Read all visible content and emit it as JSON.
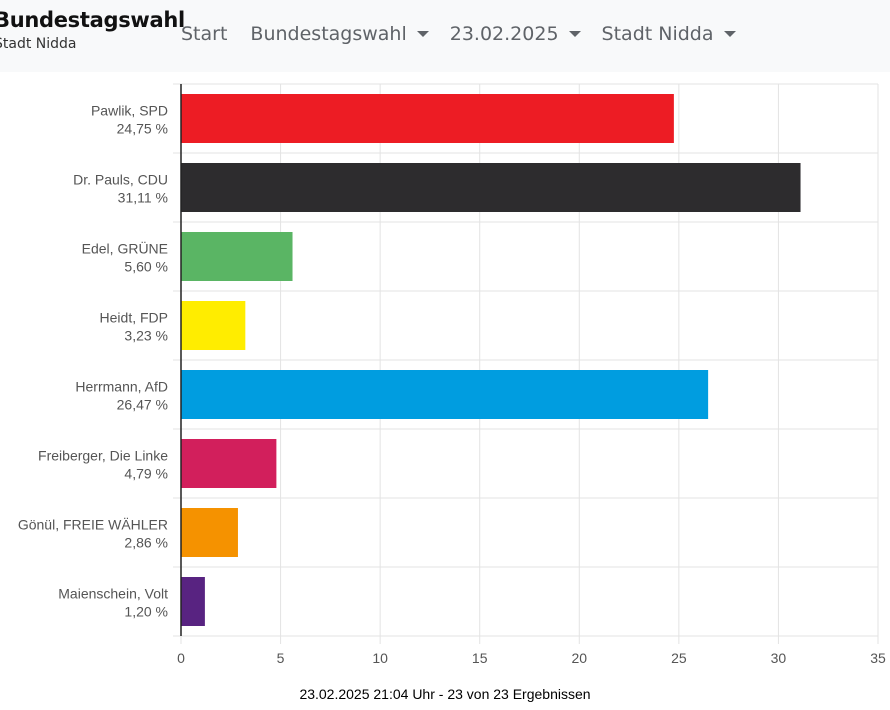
{
  "header": {
    "title": "Bundestagswahl",
    "subtitle": "Stadt Nidda",
    "nav": {
      "start": "Start",
      "election": "Bundestagswahl",
      "date": "23.02.2025",
      "area": "Stadt Nidda"
    }
  },
  "chart_data": {
    "type": "bar",
    "orientation": "horizontal",
    "categories": [
      {
        "name": "Pawlik, SPD",
        "label": "24,75 %",
        "color": "#ed1c24"
      },
      {
        "name": "Dr. Pauls, CDU",
        "label": "31,11 %",
        "color": "#2d2c2e"
      },
      {
        "name": "Edel, GRÜNE",
        "label": "5,60 %",
        "color": "#5ab564"
      },
      {
        "name": "Heidt, FDP",
        "label": "3,23 %",
        "color": "#ffed00"
      },
      {
        "name": "Herrmann, AfD",
        "label": "26,47 %",
        "color": "#009de0"
      },
      {
        "name": "Freiberger, Die Linke",
        "label": "4,79 %",
        "color": "#d21f5c"
      },
      {
        "name": "Gönül, FREIE WÄHLER",
        "label": "2,86 %",
        "color": "#f59200"
      },
      {
        "name": "Maienschein, Volt",
        "label": "1,20 %",
        "color": "#582381"
      }
    ],
    "values": [
      24.75,
      31.11,
      5.6,
      3.23,
      26.47,
      4.79,
      2.86,
      1.2
    ],
    "xlim": [
      0,
      35
    ],
    "xticks": [
      "0",
      "5",
      "10",
      "15",
      "20",
      "25",
      "30",
      "35"
    ],
    "grid": true
  },
  "footer": {
    "text": "23.02.2025 21:04 Uhr - 23 von 23 Ergebnissen"
  }
}
